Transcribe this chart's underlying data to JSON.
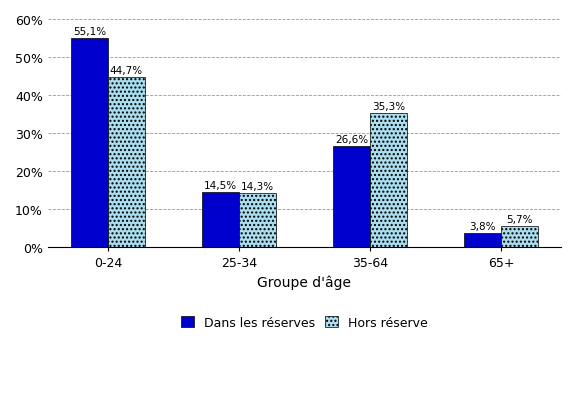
{
  "categories": [
    "0-24",
    "25-34",
    "35-64",
    "65+"
  ],
  "series1_label": "Dans les réserves",
  "series2_label": "Hors réserve",
  "series1_values": [
    55.1,
    14.5,
    26.6,
    3.8
  ],
  "series2_values": [
    44.7,
    14.3,
    35.3,
    5.7
  ],
  "series1_color": "#0000CC",
  "series2_color": "#AADDEE",
  "series2_hatch": "....",
  "xlabel": "Groupe d'âge",
  "ylim": [
    0,
    60
  ],
  "yticks": [
    0,
    10,
    20,
    30,
    40,
    50,
    60
  ],
  "bar_width": 0.28,
  "background_color": "#ffffff",
  "grid_color": "#555555",
  "label_fontsize": 7.5,
  "axis_fontsize": 9,
  "legend_fontsize": 9
}
